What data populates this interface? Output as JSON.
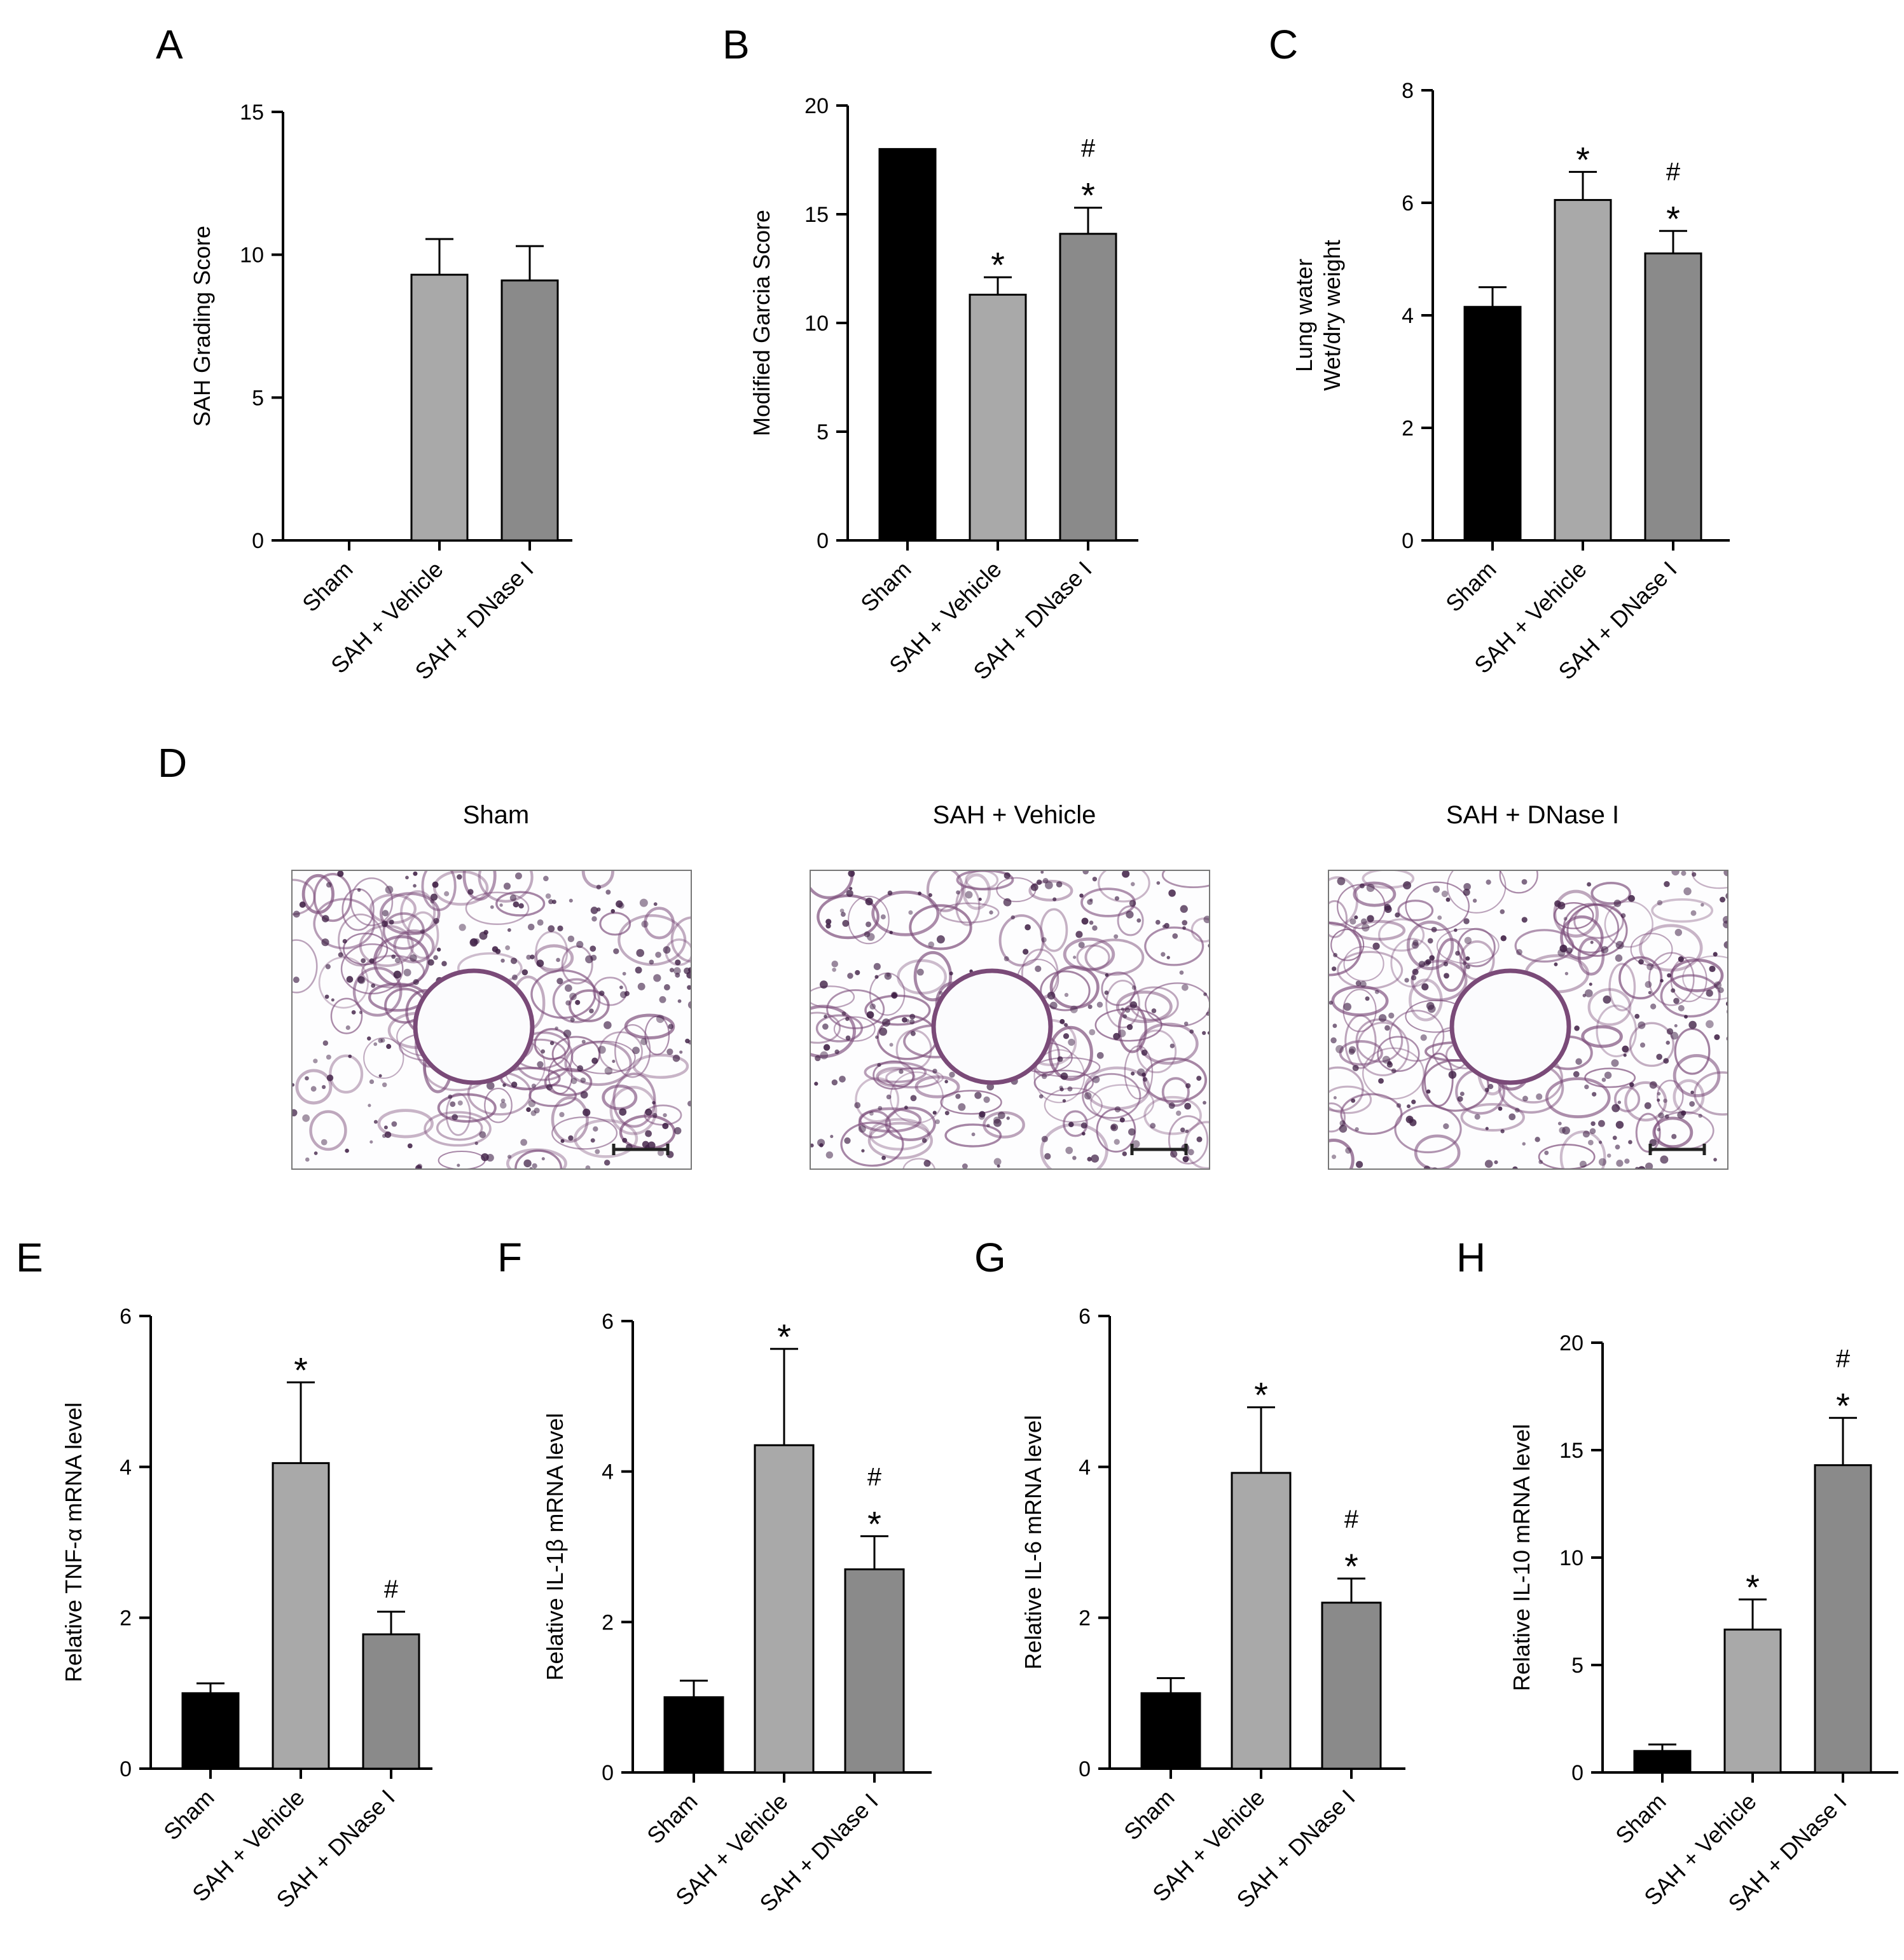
{
  "colors": {
    "sham": "#000000",
    "vehicle": "#a9a9a9",
    "dnase": "#8a8a8a",
    "tissue": "#7a4a78",
    "nuclei": "#3f1f45",
    "scale_bar": "#222222"
  },
  "chart_data": [
    {
      "panel": "A",
      "type": "bar",
      "categories": [
        "Sham",
        "SAH + Vehicle",
        "SAH + DNase I"
      ],
      "values": [
        0,
        9.3,
        9.1
      ],
      "errors": [
        0,
        1.25,
        1.2
      ],
      "markers": [
        "",
        "",
        ""
      ],
      "ylabel": [
        "SAH Grading Score"
      ],
      "ylim": [
        0,
        15
      ],
      "yticks": [
        0,
        5,
        10,
        15
      ]
    },
    {
      "panel": "B",
      "type": "bar",
      "categories": [
        "Sham",
        "SAH + Vehicle",
        "SAH + DNase I"
      ],
      "values": [
        18,
        11.3,
        14.1
      ],
      "errors": [
        0,
        0.8,
        1.2
      ],
      "markers": [
        "",
        "*",
        "#*"
      ],
      "ylabel": [
        "Modified Garcia Score"
      ],
      "ylim": [
        0,
        20
      ],
      "yticks": [
        0,
        5,
        10,
        15,
        20
      ]
    },
    {
      "panel": "C",
      "type": "bar",
      "categories": [
        "Sham",
        "SAH + Vehicle",
        "SAH + DNase I"
      ],
      "values": [
        4.15,
        6.05,
        5.1
      ],
      "errors": [
        0.35,
        0.5,
        0.4
      ],
      "markers": [
        "",
        "*",
        "#*"
      ],
      "ylabel": [
        "Lung water",
        "Wet/dry weight"
      ],
      "ylim": [
        0,
        8
      ],
      "yticks": [
        0,
        2,
        4,
        6,
        8
      ]
    },
    {
      "panel": "E",
      "type": "bar",
      "categories": [
        "Sham",
        "SAH + Vehicle",
        "SAH + DNase I"
      ],
      "values": [
        1.0,
        4.05,
        1.78
      ],
      "errors": [
        0.13,
        1.07,
        0.3
      ],
      "markers": [
        "",
        "*",
        "#"
      ],
      "ylabel": [
        "Relative TNF-α mRNA level"
      ],
      "ylim": [
        0,
        6
      ],
      "yticks": [
        0,
        2,
        4,
        6
      ]
    },
    {
      "panel": "F",
      "type": "bar",
      "categories": [
        "Sham",
        "SAH + Vehicle",
        "SAH + DNase I"
      ],
      "values": [
        1.0,
        4.35,
        2.7
      ],
      "errors": [
        0.22,
        1.28,
        0.44
      ],
      "markers": [
        "",
        "*",
        "#*"
      ],
      "ylabel": [
        "Relative IL-1β mRNA level"
      ],
      "ylim": [
        0,
        6
      ],
      "yticks": [
        0,
        2,
        4,
        6
      ]
    },
    {
      "panel": "G",
      "type": "bar",
      "categories": [
        "Sham",
        "SAH + Vehicle",
        "SAH + DNase I"
      ],
      "values": [
        1.0,
        3.92,
        2.2
      ],
      "errors": [
        0.2,
        0.87,
        0.32
      ],
      "markers": [
        "",
        "*",
        "#*"
      ],
      "ylabel": [
        "Relative IL-6 mRNA level"
      ],
      "ylim": [
        0,
        6
      ],
      "yticks": [
        0,
        2,
        4,
        6
      ]
    },
    {
      "panel": "H",
      "type": "bar",
      "categories": [
        "Sham",
        "SAH + Vehicle",
        "SAH + DNase I"
      ],
      "values": [
        1.0,
        6.65,
        14.3
      ],
      "errors": [
        0.3,
        1.4,
        2.2
      ],
      "markers": [
        "",
        "*",
        "#*"
      ],
      "ylabel": [
        "Relative IL-10 mRNA level"
      ],
      "ylim": [
        0,
        20
      ],
      "yticks": [
        0,
        5,
        10,
        15,
        20
      ]
    }
  ],
  "micrographs": {
    "panel": "D",
    "items": [
      {
        "title": "Sham"
      },
      {
        "title": "SAH + Vehicle"
      },
      {
        "title": "SAH + DNase I"
      }
    ]
  }
}
